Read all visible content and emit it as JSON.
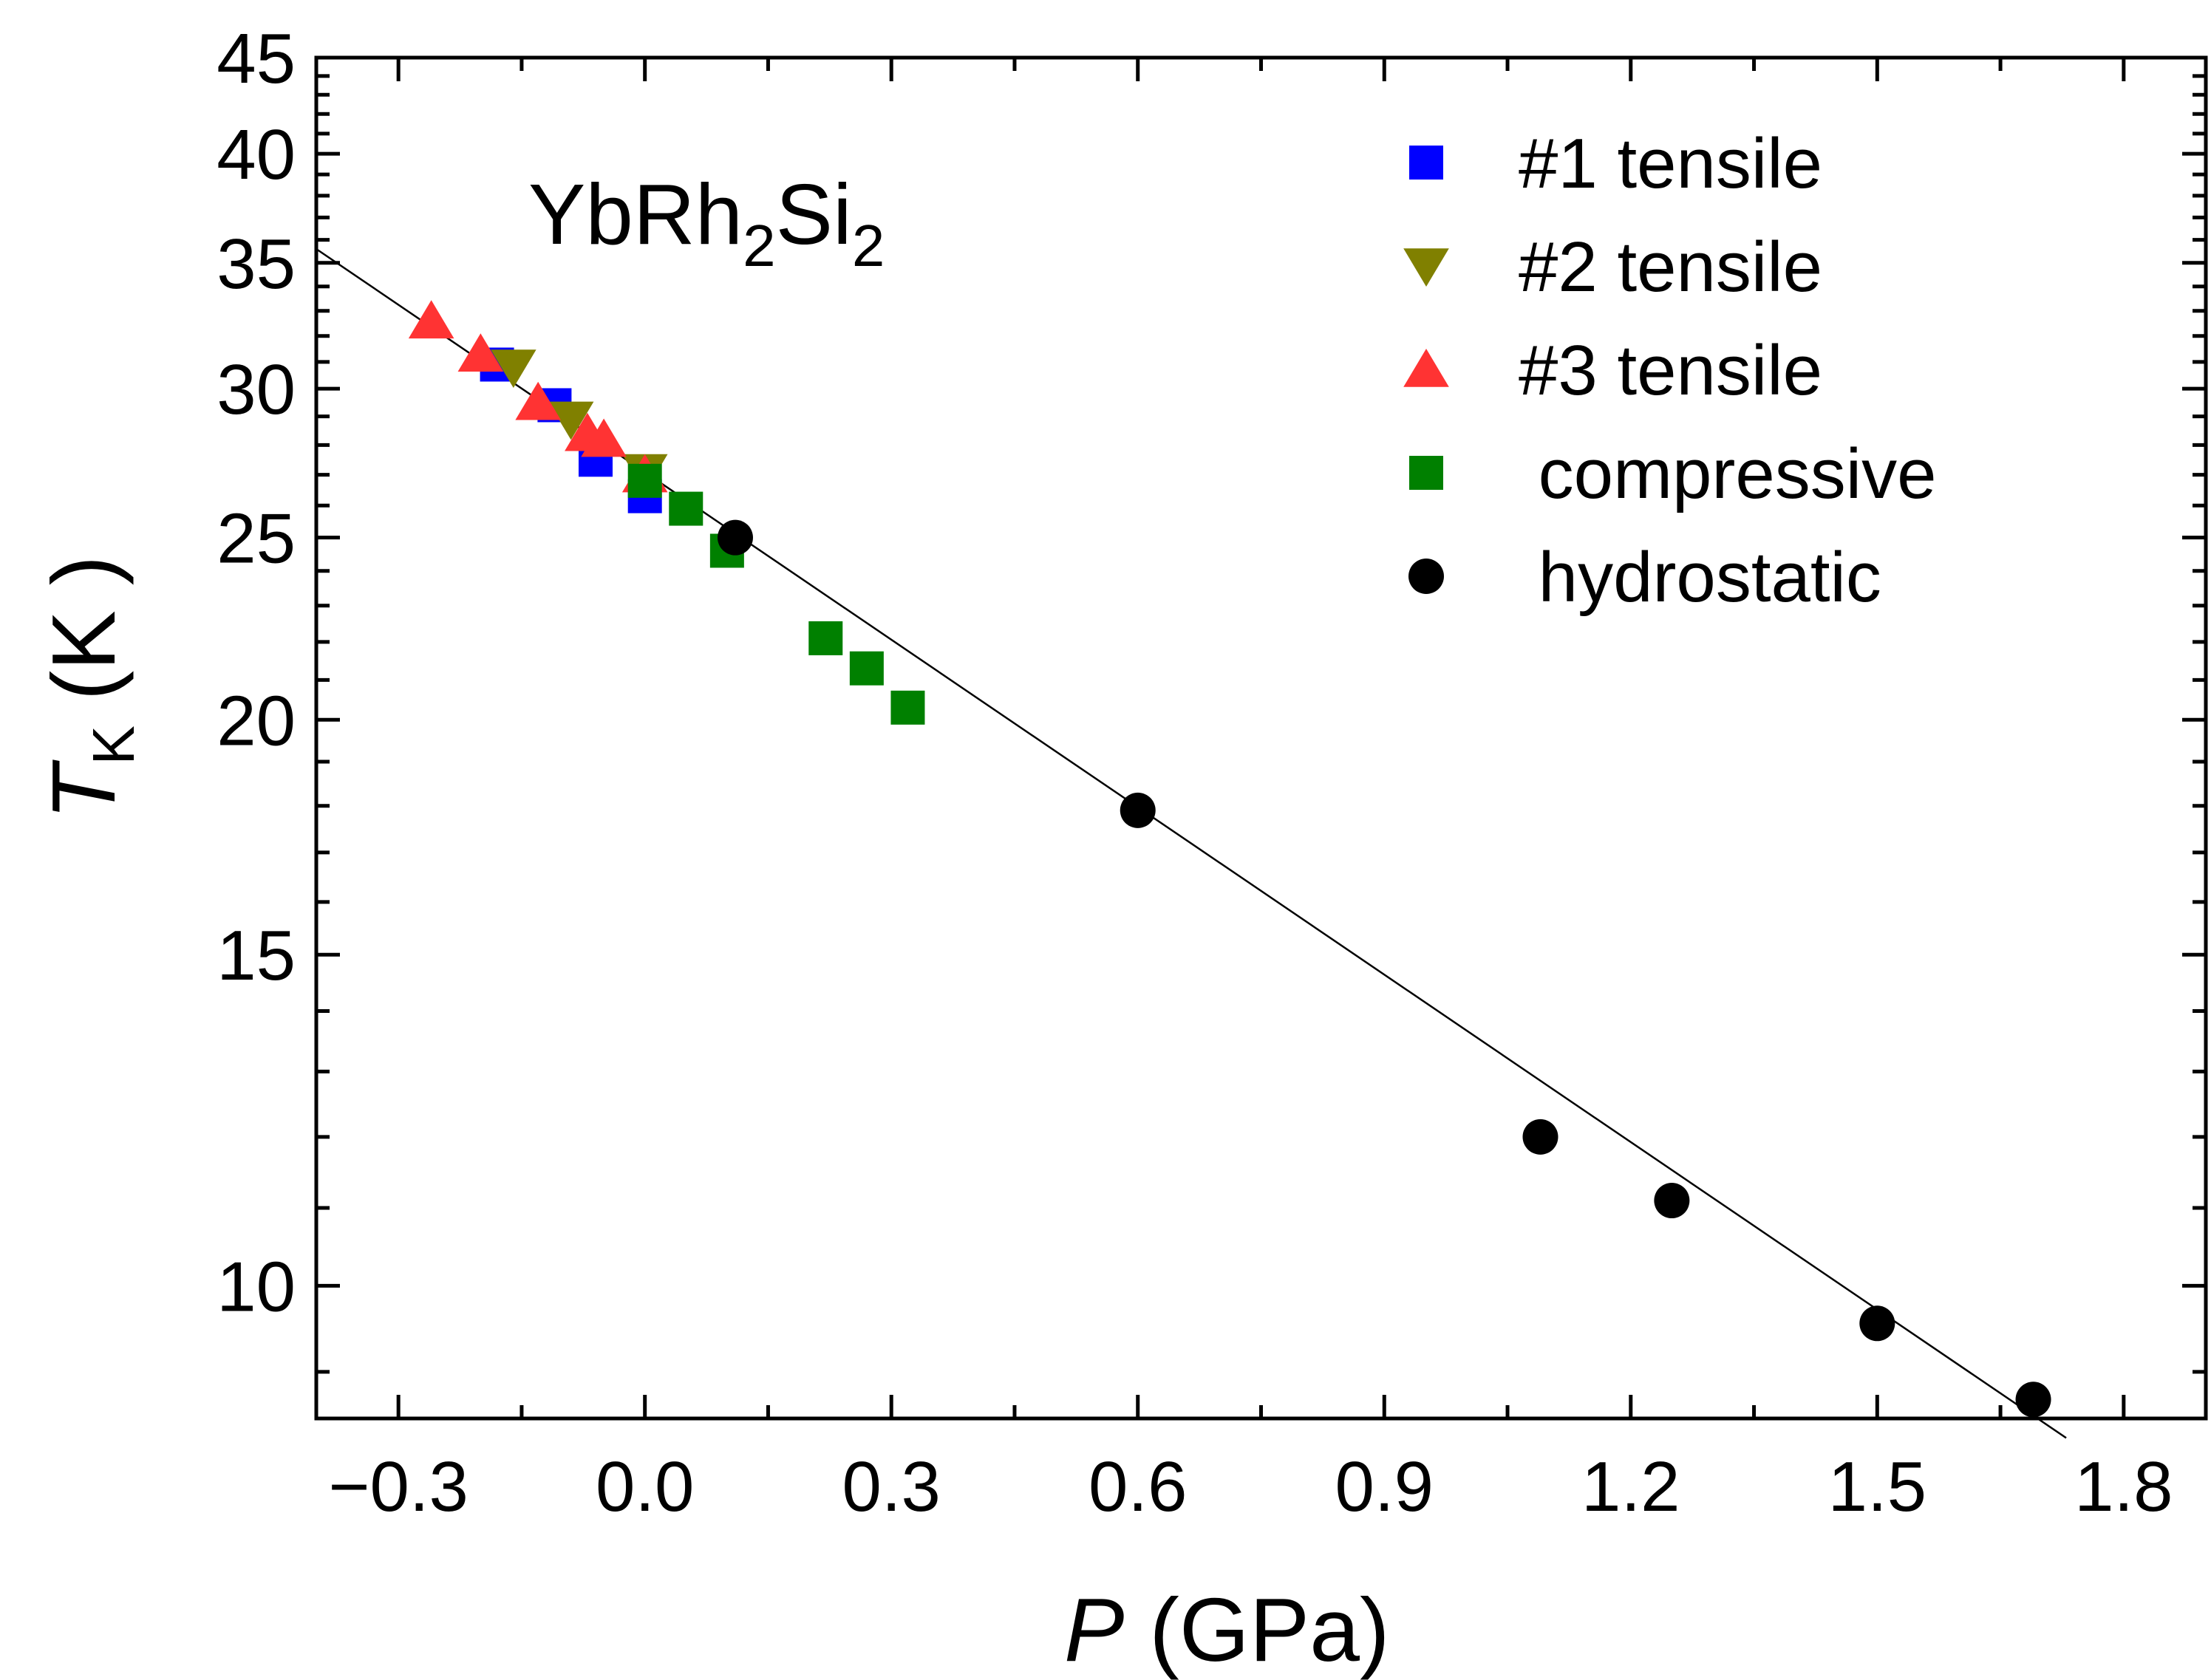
{
  "chart_data": {
    "type": "scatter",
    "annotation": {
      "main": "YbRh",
      "sub1": "2",
      "mid": "Si",
      "sub2": "2"
    },
    "xlabel": {
      "italic": "P",
      "rest": " (GPa)"
    },
    "ylabel": {
      "italic": "T",
      "sub": "K",
      "rest": " (K )"
    },
    "xlim": [
      -0.4,
      1.9
    ],
    "ylim": [
      8.5,
      45
    ],
    "yscale": "log",
    "xticks": [
      -0.3,
      0.0,
      0.3,
      0.6,
      0.9,
      1.2,
      1.5,
      1.8
    ],
    "xtick_labels": [
      "−0.3",
      "0.0",
      "0.3",
      "0.6",
      "0.9",
      "1.2",
      "1.5",
      "1.8"
    ],
    "yticks": [
      10,
      15,
      20,
      25,
      30,
      35,
      40,
      45
    ],
    "ytick_labels": [
      "10",
      "15",
      "20",
      "25",
      "30",
      "35",
      "40",
      "45"
    ],
    "legend_position": "top-right",
    "series": [
      {
        "name": "#1 tensile",
        "marker": "square",
        "color": "#0000ff",
        "x": [
          -0.18,
          -0.11,
          -0.06,
          0.0
        ],
        "y": [
          30.9,
          29.4,
          27.5,
          26.3
        ]
      },
      {
        "name": "#2 tensile",
        "marker": "triangle-down",
        "color": "#808000",
        "x": [
          -0.16,
          -0.09,
          0.0
        ],
        "y": [
          30.8,
          28.9,
          27.1
        ]
      },
      {
        "name": "#3 tensile",
        "marker": "triangle-up",
        "color": "#ff3333",
        "x": [
          -0.26,
          -0.2,
          -0.13,
          -0.07,
          -0.05,
          0.0
        ],
        "y": [
          32.6,
          31.3,
          29.5,
          28.4,
          28.2,
          27.0
        ]
      },
      {
        "name": " compressive",
        "marker": "square",
        "color": "#008000",
        "x": [
          0.0,
          0.05,
          0.1,
          0.22,
          0.27,
          0.32
        ],
        "y": [
          26.8,
          25.9,
          24.6,
          22.1,
          21.3,
          20.3
        ]
      },
      {
        "name": " hydrostatic",
        "marker": "circle",
        "color": "#000000",
        "x": [
          0.11,
          0.6,
          1.09,
          1.25,
          1.5,
          1.69
        ],
        "y": [
          25.0,
          17.9,
          12.0,
          11.1,
          9.55,
          8.7
        ]
      }
    ],
    "fit_line": {
      "x": [
        -0.4,
        1.73
      ],
      "y": [
        35.6,
        8.3
      ],
      "color": "#000000"
    }
  }
}
